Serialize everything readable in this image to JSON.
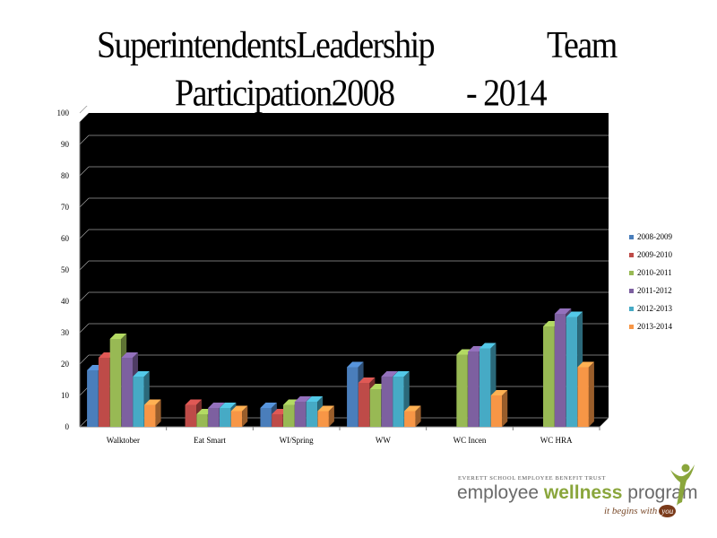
{
  "title": {
    "line1_a": "SuperintendentsLeadership",
    "line1_b": "Team",
    "line2_a": "Participation2008",
    "line2_b": "- 2014"
  },
  "chart_data": {
    "type": "bar",
    "title": "SuperintendentsLeadership Team Participation2008 - 2014",
    "xlabel": "",
    "ylabel": "",
    "ylim": [
      0,
      100
    ],
    "yticks": [
      0,
      10,
      20,
      30,
      40,
      50,
      60,
      70,
      80,
      90,
      100
    ],
    "grid": true,
    "legend": "right",
    "categories": [
      "Walktober",
      "Eat  Smart",
      "WI/Spring",
      "WW",
      "WC  Incen",
      "WC  HRA"
    ],
    "series": [
      {
        "name": "2008-2009",
        "color": "#4a7ebb",
        "values": [
          18,
          0,
          6,
          19,
          0,
          0
        ]
      },
      {
        "name": "2009-2010",
        "color": "#be4b48",
        "values": [
          22,
          7,
          4,
          14,
          0,
          0
        ]
      },
      {
        "name": "2010-2011",
        "color": "#98b954",
        "values": [
          28,
          4,
          7,
          12,
          23,
          32
        ]
      },
      {
        "name": "2011-2012",
        "color": "#7d60a0",
        "values": [
          22,
          6,
          8,
          16,
          24,
          36
        ]
      },
      {
        "name": "2012-2013",
        "color": "#46aac5",
        "values": [
          16,
          6,
          8,
          16,
          25,
          35
        ]
      },
      {
        "name": "2013-2014",
        "color": "#f79646",
        "values": [
          7,
          5,
          5,
          5,
          10,
          19
        ]
      }
    ]
  },
  "logo": {
    "trust": "EVERETT SCHOOL EMPLOYEE BENEFIT TRUST",
    "word1": "employee ",
    "word2": "wellness",
    "word3": " program",
    "tagline": "it begins with",
    "you": "you"
  }
}
